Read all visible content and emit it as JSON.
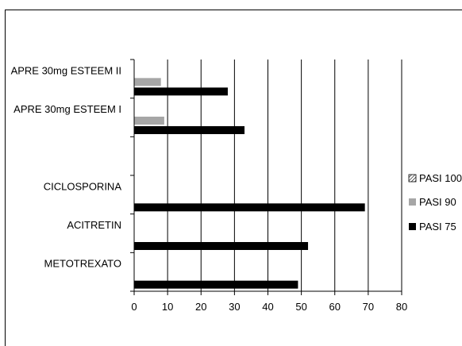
{
  "chart_data": {
    "type": "bar",
    "orientation": "horizontal",
    "title": "",
    "xlabel": "",
    "ylabel": "",
    "categories": [
      "METOTREXATO",
      "ACITRETIN",
      "CICLOSPORINA",
      "",
      "APRE 30mg ESTEEM I",
      "APRE 30mg ESTEEM II"
    ],
    "series": [
      {
        "name": "PASI 100",
        "values": [
          null,
          null,
          null,
          null,
          null,
          null
        ],
        "color": "#ffffff",
        "pattern": "diagonal-hatch"
      },
      {
        "name": "PASI 90",
        "values": [
          null,
          null,
          null,
          null,
          9,
          8
        ],
        "color": "#a6a6a6"
      },
      {
        "name": "PASI 75",
        "values": [
          49,
          52,
          69,
          null,
          33,
          28
        ],
        "color": "#000000"
      }
    ],
    "xlim": [
      0,
      80
    ],
    "xticks": [
      "0",
      "10",
      "20",
      "30",
      "40",
      "50",
      "60",
      "70",
      "80"
    ],
    "grid": "vertical",
    "legend_position": "right"
  }
}
